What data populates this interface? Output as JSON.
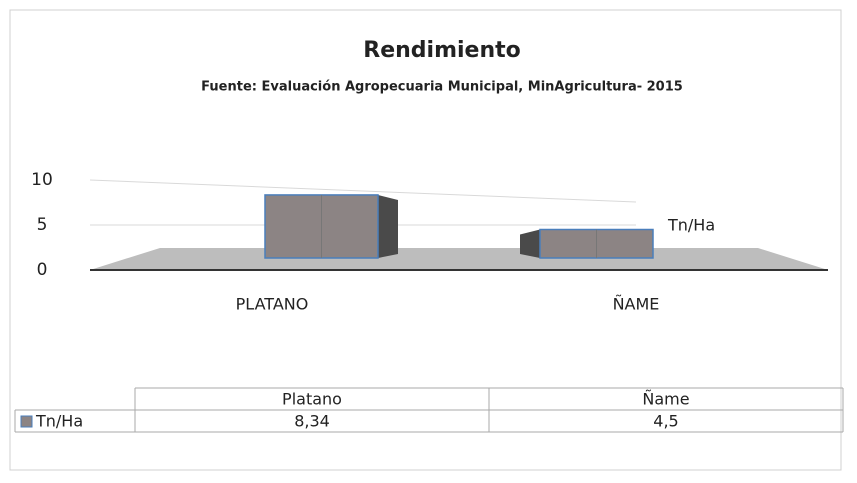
{
  "chart_data": {
    "type": "bar3d",
    "title": "Rendimiento",
    "subtitle": "Fuente: Evaluación Agropecuaria Municipal, MinAgricultura- 2015",
    "categories": [
      "PLATANO",
      "ÑAME"
    ],
    "series": [
      {
        "name": "Tn/Ha",
        "color": "#8c8484",
        "values": [
          8.34,
          4.5
        ],
        "value_labels": [
          "8,34",
          "4,5"
        ]
      }
    ],
    "table_categories": [
      "Platano",
      "Ñame"
    ],
    "ylim": [
      0,
      10
    ],
    "yticks": [
      0,
      5,
      10
    ],
    "grid": true
  }
}
